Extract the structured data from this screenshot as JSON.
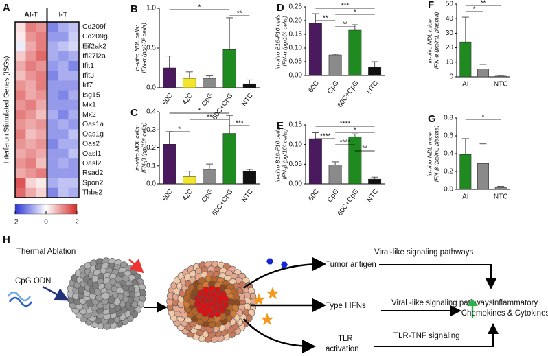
{
  "chart_data": [
    {
      "type": "heatmap",
      "label": "A",
      "groups": [
        "AI-T",
        "I-T"
      ],
      "ylabel": "Interferon Stimulated Genes (ISGs)",
      "rows": [
        "Cd209f",
        "Cd209g",
        "Eif2ak2",
        "Ifi27l2a",
        "Ifit1",
        "Ifit3",
        "Irf7",
        "Isg15",
        "Mx1",
        "Mx2",
        "Oas1a",
        "Oas1g",
        "Oas2",
        "Oasl1",
        "Oasl2",
        "Rsad2",
        "Spon2",
        "Thbs2"
      ],
      "values": [
        [
          0.3,
          1.2,
          1.0,
          -1.2,
          -0.8,
          -0.6
        ],
        [
          0.2,
          1.0,
          1.2,
          -1.0,
          -1.0,
          -0.5
        ],
        [
          -0.2,
          0.8,
          1.2,
          -0.8,
          -0.6,
          -0.4
        ],
        [
          0.5,
          1.0,
          1.4,
          -0.8,
          -1.0,
          -0.8
        ],
        [
          0.8,
          1.2,
          1.0,
          -1.0,
          -0.8,
          -1.2
        ],
        [
          0.6,
          1.0,
          1.2,
          -1.2,
          -0.8,
          -0.8
        ],
        [
          1.0,
          0.8,
          1.2,
          -1.0,
          -1.0,
          -1.0
        ],
        [
          1.2,
          0.8,
          1.0,
          -1.0,
          -1.2,
          -0.8
        ],
        [
          1.0,
          1.2,
          0.8,
          -1.0,
          -1.0,
          -1.0
        ],
        [
          1.2,
          1.0,
          0.6,
          -0.8,
          -1.2,
          -0.8
        ],
        [
          1.0,
          0.8,
          1.0,
          -1.0,
          -0.8,
          -1.0
        ],
        [
          1.2,
          0.6,
          0.8,
          -1.0,
          -1.0,
          -0.6
        ],
        [
          1.0,
          0.8,
          1.0,
          -1.2,
          -0.8,
          -0.8
        ],
        [
          0.8,
          1.0,
          0.8,
          -1.0,
          -1.0,
          -0.6
        ],
        [
          1.0,
          1.2,
          0.6,
          -1.0,
          -0.8,
          -1.0
        ],
        [
          0.8,
          1.0,
          1.2,
          -1.0,
          -1.0,
          -1.0
        ],
        [
          1.6,
          0.4,
          0.2,
          -0.8,
          -0.6,
          -0.6
        ],
        [
          1.4,
          0.8,
          0.4,
          -1.2,
          -0.6,
          -0.8
        ]
      ],
      "clim": [
        -2,
        2
      ],
      "cticks": [
        -2,
        0,
        2
      ],
      "colors": [
        "#2b35d6",
        "#ffffff",
        "#d42a2a"
      ]
    },
    {
      "type": "bar",
      "label": "B",
      "ylabel": [
        "in-vitro NDL cells:",
        "IFN-α (pg/10⁶ cells)"
      ],
      "categories": [
        "60C",
        "42C",
        "CpG",
        "60C+CpG",
        "NTC"
      ],
      "values": [
        0.25,
        0.12,
        0.12,
        0.48,
        0.05
      ],
      "errors": [
        0.15,
        0.08,
        0.03,
        0.4,
        0.05
      ],
      "colors": [
        "#4b1a5e",
        "#f2e62c",
        "#8a8a8a",
        "#1f8a1f",
        "#111111"
      ],
      "ylim": [
        0,
        1.0
      ],
      "yticks": [
        {
          "value": 0,
          "label": "0.0"
        },
        0.5,
        {
          "value": 1,
          "label": "1.0"
        }
      ],
      "brackets": [
        {
          "label": "*",
          "between": [
            "60C",
            "60C+CpG"
          ]
        },
        {
          "label": "**",
          "between": [
            "60C+CpG",
            "NTC"
          ]
        }
      ]
    },
    {
      "type": "bar",
      "label": "C",
      "ylabel": [
        "in-vitro NDL cells:",
        "IFN-β (pg/10⁶ cells)"
      ],
      "categories": [
        "60C",
        "42C",
        "CpG",
        "60C+CpG",
        "NTC"
      ],
      "values": [
        0.22,
        0.04,
        0.08,
        0.28,
        0.07
      ],
      "errors": [
        0.07,
        0.03,
        0.03,
        0.1,
        0.01
      ],
      "colors": [
        "#4b1a5e",
        "#f2e62c",
        "#8a8a8a",
        "#1f8a1f",
        "#111111"
      ],
      "ylim": [
        0,
        0.4
      ],
      "yticks": [
        {
          "value": 0,
          "label": "0.0"
        },
        0.1,
        0.2,
        0.3,
        0.4
      ],
      "brackets": [
        {
          "label": "*",
          "between": [
            "60C",
            "60C+CpG"
          ]
        },
        {
          "label": "**",
          "between": [
            "42C",
            "60C+CpG"
          ]
        },
        {
          "label": "***",
          "between": [
            "60C+CpG",
            "NTC"
          ]
        },
        {
          "label": "*",
          "between": [
            "60C",
            "42C"
          ]
        }
      ]
    },
    {
      "type": "bar",
      "label": "D",
      "ylabel": [
        "in-vitro B16-F10 cells:",
        "IFN-α (pg/10⁶ cells)"
      ],
      "categories": [
        "60C",
        "CpG",
        "60C+CpG",
        "NTC"
      ],
      "values": [
        0.19,
        0.075,
        0.165,
        0.03
      ],
      "errors": [
        0.035,
        0.003,
        0.02,
        0.02
      ],
      "colors": [
        "#4b1a5e",
        "#8a8a8a",
        "#1f8a1f",
        "#111111"
      ],
      "ylim": [
        0,
        0.25
      ],
      "yticks": [
        {
          "value": 0,
          "label": "0.00"
        },
        0.05,
        {
          "value": 0.1,
          "label": "0.10"
        },
        0.15,
        {
          "value": 0.2,
          "label": "0.20"
        },
        0.25
      ],
      "brackets": [
        {
          "label": "***",
          "between": [
            "60C",
            "NTC"
          ]
        },
        {
          "label": "*",
          "between": [
            "CpG",
            "NTC"
          ]
        },
        {
          "label": "**",
          "between": [
            "60C",
            "CpG"
          ]
        },
        {
          "label": "**",
          "between": [
            "CpG",
            "60C+CpG"
          ]
        }
      ]
    },
    {
      "type": "bar",
      "label": "E",
      "ylabel": [
        "in-vitro B16-F10 cells:",
        "IFN-β (pg/10⁶ cells)"
      ],
      "categories": [
        "60C",
        "CpG",
        "60C+CpG",
        "NTC"
      ],
      "values": [
        0.115,
        0.048,
        0.12,
        0.012
      ],
      "errors": [
        0.015,
        0.008,
        0.007,
        0.005
      ],
      "colors": [
        "#4b1a5e",
        "#8a8a8a",
        "#1f8a1f",
        "#111111"
      ],
      "ylim": [
        0,
        0.15
      ],
      "yticks": [
        {
          "value": 0,
          "label": "0.00"
        },
        0.05,
        {
          "value": 0.1,
          "label": "0.10"
        },
        0.15
      ],
      "brackets": [
        {
          "label": "****",
          "between": [
            "60C",
            "NTC"
          ]
        },
        {
          "label": "*",
          "between": [
            "CpG",
            "NTC"
          ]
        },
        {
          "label": "****",
          "between": [
            "60C",
            "CpG"
          ]
        },
        {
          "label": "****",
          "between": [
            "CpG",
            "60C+CpG"
          ]
        },
        {
          "label": "**",
          "between": [
            "60C+CpG",
            "NTC"
          ]
        }
      ]
    },
    {
      "type": "bar",
      "label": "F",
      "ylabel": [
        "in-vivo NDL mice:",
        "IFN-α (pg/mL plasma)"
      ],
      "categories": [
        "AI",
        "I",
        "NTC"
      ],
      "values": [
        24,
        5.5,
        0.5
      ],
      "errors": [
        17,
        3,
        0.5
      ],
      "colors": [
        "#1f8a1f",
        "#8a8a8a",
        "#8a8a8a"
      ],
      "ylim": [
        0,
        50
      ],
      "yticks": [
        0,
        10,
        20,
        30,
        40,
        50
      ],
      "brackets": [
        {
          "label": "**",
          "between": [
            "AI",
            "NTC"
          ]
        },
        {
          "label": "*",
          "between": [
            "AI",
            "I"
          ]
        }
      ]
    },
    {
      "type": "bar",
      "label": "G",
      "ylabel": [
        "in-vivo NDL mice:",
        "IFN-β (pg/mL plasma)"
      ],
      "categories": [
        "AI",
        "I",
        "NTC"
      ],
      "values": [
        0.39,
        0.29,
        0.02
      ],
      "errors": [
        0.18,
        0.22,
        0.015
      ],
      "colors": [
        "#1f8a1f",
        "#8a8a8a",
        "#8a8a8a"
      ],
      "ylim": [
        0,
        0.8
      ],
      "yticks": [
        {
          "value": 0,
          "label": "0.0"
        },
        0.2,
        0.4,
        0.6,
        0.8
      ],
      "brackets": [
        {
          "label": "*",
          "between": [
            "AI",
            "NTC"
          ]
        }
      ]
    }
  ],
  "diagram": {
    "label": "H",
    "thermal": "Thermal Ablation",
    "cpg": "CpG ODN",
    "antigen": "Tumor antigen",
    "ifn": "Type I IFNs",
    "tlr": [
      "TLR",
      "activation"
    ],
    "path1": "Viral-like signaling pathways",
    "path2": "Viral -like signaling pathways",
    "path3": "TLR-TNF signaling",
    "outcome": [
      "Inflammatory",
      "Chemokines & Cytokines"
    ]
  }
}
